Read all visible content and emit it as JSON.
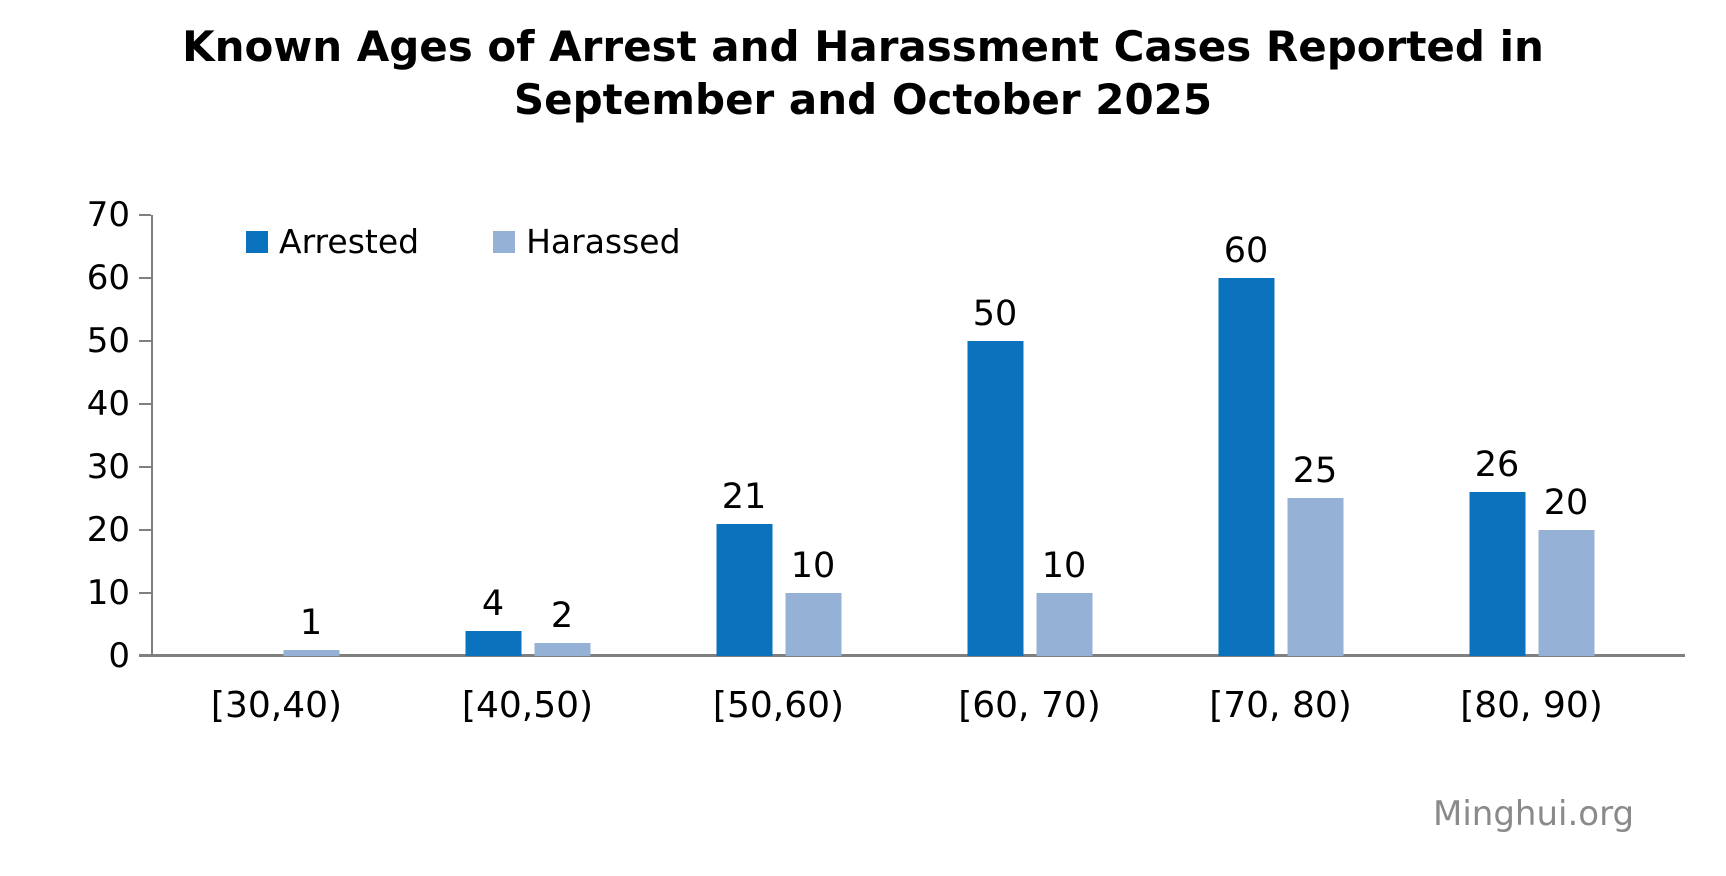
{
  "title": {
    "lines": [
      "Known Ages of Arrest and Harassment Cases Reported in",
      "September and October 2025"
    ]
  },
  "legend": {
    "items": [
      {
        "label": "Arrested",
        "color": "#0B72BE"
      },
      {
        "label": "Harassed",
        "color": "#96B1D6"
      }
    ]
  },
  "watermark": "Minghui.org",
  "colors": {
    "arrested_bar": "#0B72BE",
    "harassed_bar": "#96B1D6",
    "axis": "#7F7F7F",
    "text": "#000000",
    "watermark_text": "#8A8A8A",
    "background": "#FFFFFF"
  },
  "chart_data": {
    "type": "bar",
    "title": "Known Ages of Arrest and Harassment Cases Reported in September and October 2025",
    "categories": [
      "[30,40)",
      "[40,50)",
      "[50,60)",
      "[60, 70)",
      "[70, 80)",
      "[80, 90)"
    ],
    "series": [
      {
        "name": "Arrested",
        "color": "#0B72BE",
        "values": [
          0,
          4,
          21,
          50,
          60,
          26
        ]
      },
      {
        "name": "Harassed",
        "color": "#96B1D6",
        "values": [
          1,
          2,
          10,
          10,
          25,
          20
        ]
      }
    ],
    "xlabel": "",
    "ylabel": "",
    "ylim": [
      0,
      70
    ],
    "yticks": [
      0,
      10,
      20,
      30,
      40,
      50,
      60,
      70
    ],
    "grid": false,
    "legend_position": "inside-top-left",
    "data_labels": "values shown above each bar; zero values render no bar and no label",
    "watermark": "Minghui.org"
  }
}
